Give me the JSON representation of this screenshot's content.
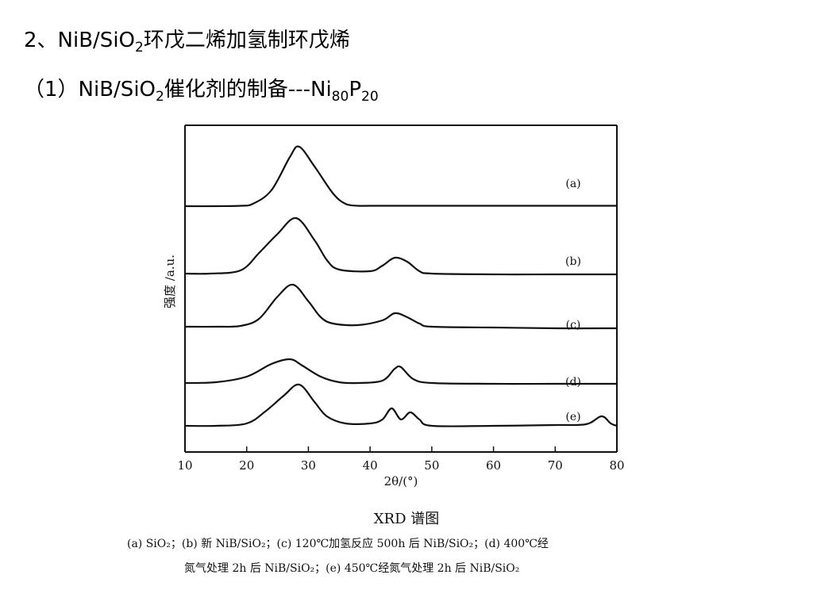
{
  "slide": {
    "heading": {
      "prefix": "2、NiB/SiO",
      "sub": "2",
      "suffix": "环戊二烯加氢制环戊烯"
    },
    "subheading": {
      "prefix": "（1）NiB/SiO",
      "sub1": "2",
      "mid": "催化剂的制备---Ni",
      "sub2": "80",
      "p": "P",
      "sub3": "20"
    }
  },
  "chart_data": {
    "type": "line",
    "title": "XRD 谱图",
    "xlabel": "2θ/(°)",
    "ylabel": "强度 /a.u.",
    "xlim": [
      10,
      80
    ],
    "x_ticks": [
      10,
      20,
      30,
      40,
      50,
      60,
      70,
      80
    ],
    "y_ticks": "none",
    "grid": false,
    "line_color": "#111111",
    "series": [
      {
        "name": "(a)",
        "x": [
          10,
          15,
          19,
          21,
          24,
          27,
          28.5,
          31,
          34,
          36,
          38,
          40,
          45,
          50,
          60,
          70,
          80
        ],
        "y": [
          0,
          0,
          0.5,
          3,
          20,
          62,
          75,
          50,
          16,
          3,
          0.5,
          0.5,
          0.5,
          0.5,
          0.5,
          0.5,
          0.5
        ]
      },
      {
        "name": "(b)",
        "x": [
          10,
          14,
          19,
          22,
          25,
          28,
          31,
          33,
          35,
          40,
          42,
          44,
          46,
          48,
          50,
          60,
          70,
          80
        ],
        "y": [
          0,
          0,
          4,
          26,
          50,
          70,
          42,
          17,
          5,
          3,
          10,
          20,
          15,
          3,
          0,
          -1,
          -1,
          -1
        ]
      },
      {
        "name": "(c)",
        "x": [
          10,
          15,
          19,
          22,
          25,
          27.5,
          30,
          32,
          34,
          38,
          42,
          44,
          46,
          48,
          50,
          60,
          70,
          80
        ],
        "y": [
          0,
          0,
          1,
          10,
          38,
          53,
          32,
          12,
          4,
          2,
          8,
          17,
          12,
          4,
          0,
          -1,
          -2,
          -2
        ]
      },
      {
        "name": "(d)",
        "x": [
          10,
          15,
          20,
          24,
          27,
          29,
          32,
          35,
          38,
          42,
          44,
          45,
          47,
          50,
          60,
          70,
          80
        ],
        "y": [
          0,
          1,
          8,
          24,
          30,
          22,
          8,
          1,
          0,
          3,
          18,
          20,
          5,
          0,
          -1,
          -1,
          -1
        ]
      },
      {
        "name": "(e)",
        "x": [
          10,
          15,
          20,
          23,
          26,
          28.5,
          31,
          33,
          36,
          40,
          42,
          43.5,
          45,
          46.5,
          48,
          50,
          60,
          70,
          75,
          77.5,
          79,
          80
        ],
        "y": [
          0,
          0,
          3,
          18,
          38,
          52,
          30,
          12,
          3,
          3,
          8,
          22,
          8,
          17,
          8,
          0,
          0,
          1,
          2,
          12,
          3,
          0
        ]
      }
    ],
    "caption_lines": [
      "(a) SiO₂；(b) 新 NiB/SiO₂；(c) 120℃加氢反应 500h 后 NiB/SiO₂；(d) 400℃经",
      "氮气处理 2h 后 NiB/SiO₂；(e) 450℃经氮气处理 2h 后 NiB/SiO₂"
    ]
  }
}
